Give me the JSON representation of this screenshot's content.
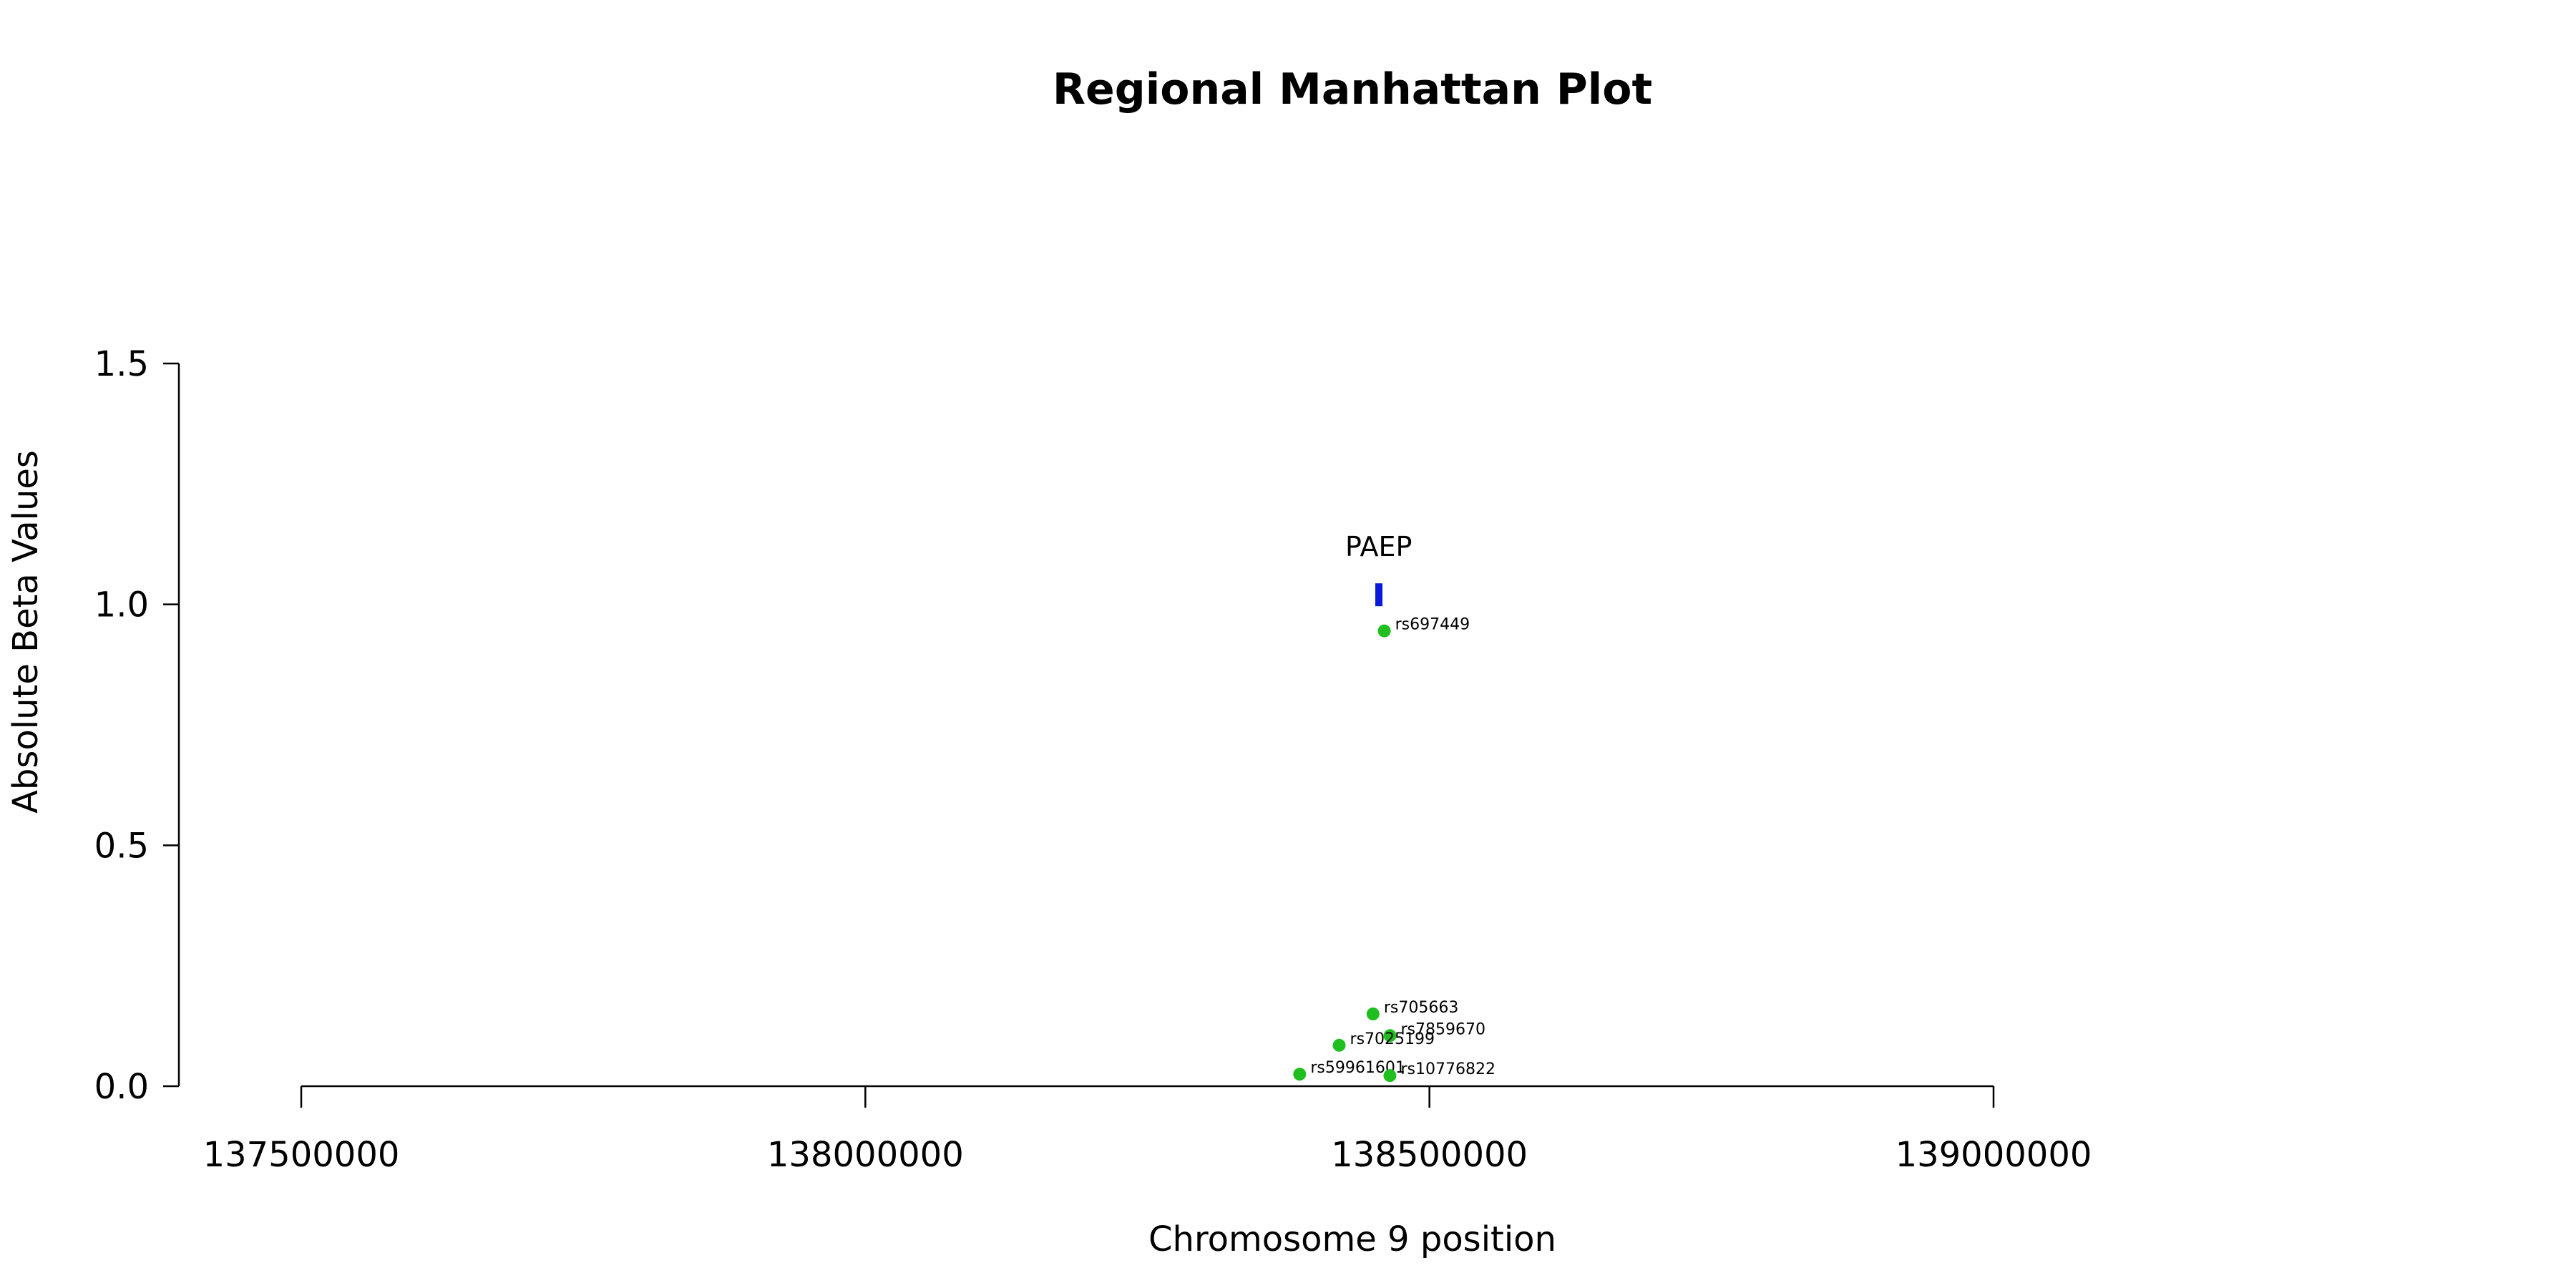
{
  "chart_data": {
    "type": "scatter",
    "title": "Regional Manhattan Plot",
    "xlabel": "Chromosome 9 position",
    "ylabel": "Absolute Beta Values",
    "xlim": [
      137500000,
      139000000
    ],
    "ylim": [
      0,
      1.5
    ],
    "x_ticks": [
      137500000,
      138000000,
      138500000,
      139000000
    ],
    "y_ticks": [
      0.0,
      0.5,
      1.0,
      1.5
    ],
    "x_tick_labels": [
      "137500000",
      "138000000",
      "138500000",
      "139000000"
    ],
    "y_tick_labels": [
      "0.0",
      "0.5",
      "1.0",
      "1.5"
    ],
    "grid": false,
    "point_color": "#1fbf1f",
    "points": [
      {
        "label": "rs697449",
        "x": 138460000,
        "y": 0.945
      },
      {
        "label": "rs705663",
        "x": 138450000,
        "y": 0.15
      },
      {
        "label": "rs7859670",
        "x": 138465000,
        "y": 0.105
      },
      {
        "label": "rs7025199",
        "x": 138420000,
        "y": 0.085
      },
      {
        "label": "rs59961601",
        "x": 138385000,
        "y": 0.025
      },
      {
        "label": "rs10776822",
        "x": 138465000,
        "y": 0.022
      }
    ],
    "gene": {
      "name": "PAEP",
      "start": 138452000,
      "end": 138458000,
      "y": 1.02,
      "color": "#0a1adb"
    }
  }
}
